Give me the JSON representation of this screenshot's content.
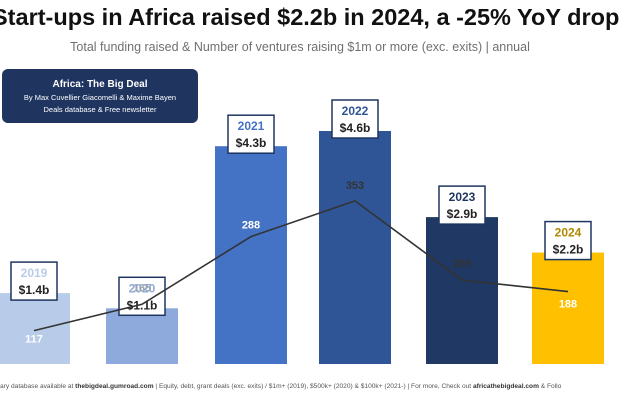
{
  "header": {
    "title": "Start-ups in Africa raised $2.2b in 2024, a -25% YoY drop",
    "subtitle": "Total funding raised & Number of ventures raising $1m or more (exc. exits) | annual"
  },
  "badge": {
    "title": "Africa: The Big Deal",
    "line1": "By Max Cuvellier Giacomelli & Maxime Bayen",
    "line2": "Deals database & Free newsletter"
  },
  "footer": {
    "p1": "ary database available at ",
    "p2": "thebigdeal.gumroad.com",
    "p3": " | Equity, debt, grant deals (exc. exits) / $1m+ (2019), $500k+ (2020) & $100k+ (2021-) | For more, Check out ",
    "p4": "africathebigdeal.com",
    "p5": " & Follo"
  },
  "chart_data": {
    "type": "bar",
    "categories": [
      "2019",
      "2020",
      "2021",
      "2022",
      "2023",
      "2024"
    ],
    "series": [
      {
        "values": [
          1.4,
          1.1,
          4.3,
          4.6,
          2.9,
          2.2
        ],
        "labels": [
          "$1.4b",
          "$1.1b",
          "$4.3b",
          "$4.6b",
          "$2.9b",
          "$2.2b"
        ],
        "colors": [
          "#b8cbe8",
          "#8ea9dc",
          "#4472c4",
          "#2f5597",
          "#203864",
          "#ffc000"
        ]
      },
      {
        "type": "line",
        "values": [
          117,
          165,
          288,
          353,
          209,
          188
        ],
        "color": "#333333"
      }
    ],
    "grid": false,
    "legend": "none"
  }
}
